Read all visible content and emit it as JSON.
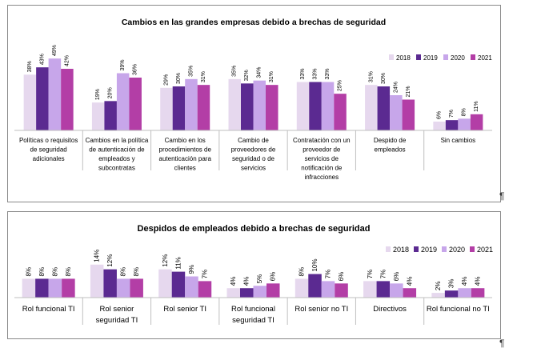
{
  "pilcrow": "¶",
  "chart_data": [
    {
      "type": "bar",
      "title": "Cambios en las grandes empresas debido a brechas de seguridad",
      "legend_position": "top-right",
      "grid": false,
      "categories": [
        [
          "Políticas o requisitos",
          "de seguridad",
          "adicionales"
        ],
        [
          "Cambios en la política",
          "de autenticación de",
          "empleados y",
          "subcontratas"
        ],
        [
          "Cambio en los",
          "procedimientos de",
          "autenticación para",
          "clientes"
        ],
        [
          "Cambio de",
          "proveedores de",
          "seguridad o de",
          "servicios"
        ],
        [
          "Contratación con un",
          "proveedor de",
          "servicios de",
          "notificación de",
          "infracciones"
        ],
        [
          "Despido de",
          "empleados"
        ],
        [
          "Sin cambios"
        ]
      ],
      "series": [
        {
          "name": "2018",
          "color": "#e6d8ee",
          "values": [
            38,
            19,
            29,
            35,
            33,
            31,
            6
          ],
          "labels": [
            "38%",
            "19%",
            "29%",
            "35%",
            "33%",
            "31%",
            "6%"
          ]
        },
        {
          "name": "2019",
          "color": "#5b2a91",
          "values": [
            43,
            20,
            30,
            32,
            33,
            30,
            7
          ],
          "labels": [
            "43%",
            "20%",
            "30%",
            "32%",
            "33%",
            "30%",
            "7%"
          ]
        },
        {
          "name": "2020",
          "color": "#c7a6ea",
          "values": [
            49,
            39,
            35,
            34,
            33,
            24,
            8
          ],
          "labels": [
            "49%",
            "39%",
            "35%",
            "34%",
            "33%",
            "24%",
            "8%"
          ]
        },
        {
          "name": "2021",
          "color": "#b33ea6",
          "values": [
            42,
            36,
            31,
            31,
            25,
            21,
            11
          ],
          "labels": [
            "42%",
            "36%",
            "31%",
            "31%",
            "25%",
            "21%",
            "11%"
          ]
        }
      ],
      "ylim": [
        0,
        60
      ]
    },
    {
      "type": "bar",
      "title": "Despidos de empleados debido a brechas de seguridad",
      "legend_position": "top-right",
      "grid": false,
      "categories": [
        [
          "Rol funcional TI"
        ],
        [
          "Rol senior",
          "seguridad TI"
        ],
        [
          "Rol senior TI"
        ],
        [
          "Rol funcional",
          "seguridad TI"
        ],
        [
          "Rol senior no TI"
        ],
        [
          "Directivos"
        ],
        [
          "Rol funcional no TI"
        ]
      ],
      "series": [
        {
          "name": "2018",
          "color": "#e6d8ee",
          "values": [
            8,
            14,
            12,
            4,
            8,
            7,
            2
          ],
          "labels": [
            "8%",
            "14%",
            "12%",
            "4%",
            "8%",
            "7%",
            "2%"
          ]
        },
        {
          "name": "2019",
          "color": "#5b2a91",
          "values": [
            8,
            12,
            11,
            4,
            10,
            7,
            3
          ],
          "labels": [
            "8%",
            "12%",
            "11%",
            "4%",
            "10%",
            "7%",
            "3%"
          ]
        },
        {
          "name": "2020",
          "color": "#c7a6ea",
          "values": [
            8,
            8,
            9,
            5,
            7,
            6,
            4
          ],
          "labels": [
            "8%",
            "8%",
            "9%",
            "5%",
            "7%",
            "6%",
            "4%"
          ]
        },
        {
          "name": "2021",
          "color": "#b33ea6",
          "values": [
            8,
            8,
            7,
            6,
            6,
            4,
            4
          ],
          "labels": [
            "8%",
            "8%",
            "7%",
            "6%",
            "6%",
            "4%",
            "4%"
          ]
        }
      ],
      "ylim": [
        0,
        18
      ]
    }
  ]
}
